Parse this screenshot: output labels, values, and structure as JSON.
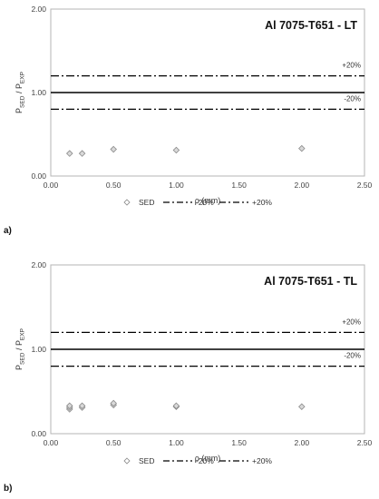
{
  "chart_data": [
    {
      "type": "scatter",
      "panel": "a)",
      "title": "Al 7075-T651 - LT",
      "xlabel": "ρ (mm)",
      "ylabel": {
        "main": "P",
        "sub1": "SED",
        "sep": " / P",
        "sub2": "EXP"
      },
      "xlim": [
        0,
        2.5
      ],
      "ylim": [
        0,
        2
      ],
      "xticks": [
        "0.00",
        "0.50",
        "1.00",
        "1.50",
        "2.00",
        "2.50"
      ],
      "yticks": [
        "0.00",
        "1.00",
        "2.00"
      ],
      "grid": false,
      "legend_position": "bottom",
      "legend": {
        "sed": "SED",
        "minus": "-20%",
        "plus": "+20%"
      },
      "bands": {
        "plus_label": "+20%",
        "minus_label": "-20%",
        "ref": 1.0,
        "upper": 1.2,
        "lower": 0.8
      },
      "series": [
        {
          "name": "SED",
          "points": [
            {
              "x": 0.15,
              "y": 0.27
            },
            {
              "x": 0.25,
              "y": 0.27
            },
            {
              "x": 0.5,
              "y": 0.32
            },
            {
              "x": 1.0,
              "y": 0.31
            },
            {
              "x": 2.0,
              "y": 0.33
            }
          ]
        }
      ]
    },
    {
      "type": "scatter",
      "panel": "b)",
      "title": "Al 7075-T651 - TL",
      "xlabel": "ρ (mm)",
      "ylabel": {
        "main": "P",
        "sub1": "SED",
        "sep": " / P",
        "sub2": "EXP"
      },
      "xlim": [
        0,
        2.5
      ],
      "ylim": [
        0,
        2
      ],
      "xticks": [
        "0.00",
        "0.50",
        "1.00",
        "1.50",
        "2.00",
        "2.50"
      ],
      "yticks": [
        "0.00",
        "1.00",
        "2.00"
      ],
      "grid": false,
      "legend_position": "bottom",
      "legend": {
        "sed": "SED",
        "minus": "-20%",
        "plus": "+20%"
      },
      "bands": {
        "plus_label": "+20%",
        "minus_label": "-20%",
        "ref": 1.0,
        "upper": 1.2,
        "lower": 0.8
      },
      "series": [
        {
          "name": "SED",
          "points": [
            {
              "x": 0.15,
              "y": 0.29
            },
            {
              "x": 0.15,
              "y": 0.31
            },
            {
              "x": 0.15,
              "y": 0.33
            },
            {
              "x": 0.25,
              "y": 0.31
            },
            {
              "x": 0.25,
              "y": 0.33
            },
            {
              "x": 0.5,
              "y": 0.34
            },
            {
              "x": 0.5,
              "y": 0.36
            },
            {
              "x": 1.0,
              "y": 0.32
            },
            {
              "x": 1.0,
              "y": 0.33
            },
            {
              "x": 2.0,
              "y": 0.32
            }
          ]
        }
      ]
    }
  ]
}
